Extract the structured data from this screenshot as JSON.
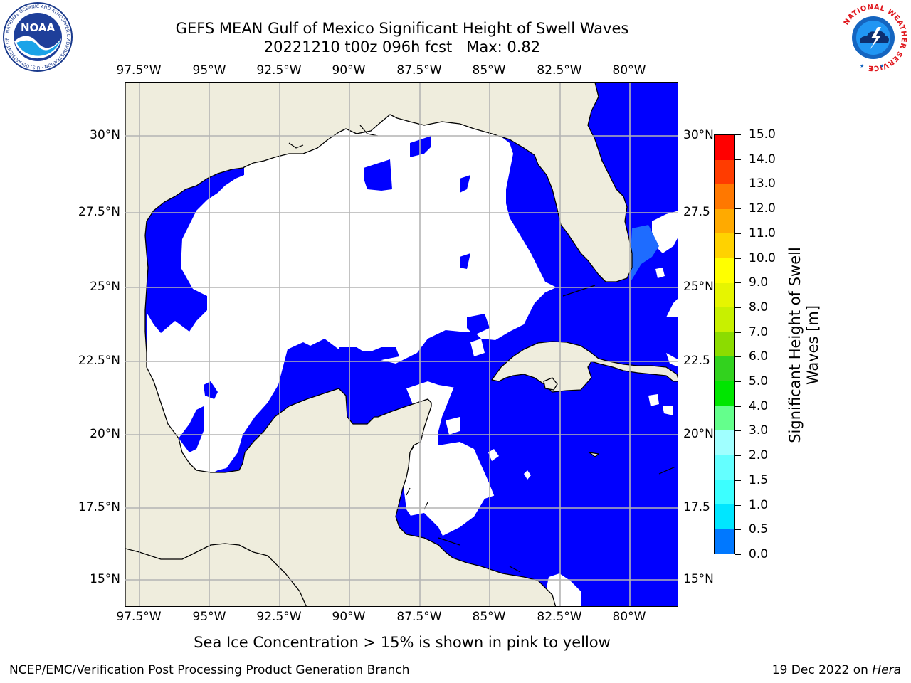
{
  "title": {
    "line1": "GEFS MEAN Gulf of Mexico Significant Height of Swell Waves",
    "line2": "20221210 t00z 096h fcst   Max: 0.82"
  },
  "map": {
    "lon_ticks": [
      "97.5°W",
      "95°W",
      "92.5°W",
      "90°W",
      "87.5°W",
      "85°W",
      "82.5°W",
      "80°W"
    ],
    "lat_ticks": [
      "30°N",
      "27.5°N",
      "25°N",
      "22.5°N",
      "20°N",
      "17.5°N",
      "15°N"
    ],
    "lat_ticks_right": [
      "30°N",
      "27.5",
      "25°N",
      "22.5",
      "20°N",
      "17.5",
      "15°N"
    ],
    "lon_range": [
      -98,
      -78.2
    ],
    "lat_range": [
      14,
      31.6
    ],
    "ocean_color": "#0000ff",
    "land_color": "#efeddd",
    "no_data_color": "#ffffff",
    "grid_color": "#b4b4b4"
  },
  "colorbar": {
    "title": "Significant Height of Swell\nWaves [m]",
    "ticks": [
      "0.0",
      "0.5",
      "1.0",
      "1.5",
      "2.0",
      "3.0",
      "4.0",
      "5.0",
      "6.0",
      "7.0",
      "8.0",
      "9.0",
      "10.0",
      "11.0",
      "12.0",
      "13.0",
      "14.0",
      "15.0"
    ],
    "colors": [
      "#0000ff",
      "#0078ff",
      "#00e6ff",
      "#3cffff",
      "#64ffff",
      "#a0ffff",
      "#64ff8c",
      "#00e600",
      "#32d21e",
      "#8cdc00",
      "#c8f000",
      "#e6f500",
      "#ffff00",
      "#ffd200",
      "#ffaa00",
      "#ff7800",
      "#ff3c00",
      "#ff0000"
    ]
  },
  "note": "Sea Ice Concentration > 15% is shown in pink to yellow",
  "footer": {
    "credit": "NCEP/EMC/Verification Post Processing Product Generation Branch",
    "date": "19 Dec 2022 on",
    "system": "Hera"
  },
  "logos": {
    "noaa_text": "NOAA",
    "noaa_ring": "NATIONAL OCEANIC AND ATMOSPHERIC ADMINISTRATION · U.S. DEPARTMENT OF COMMERCE",
    "nws_ring": "NATIONAL WEATHER SERVICE"
  }
}
